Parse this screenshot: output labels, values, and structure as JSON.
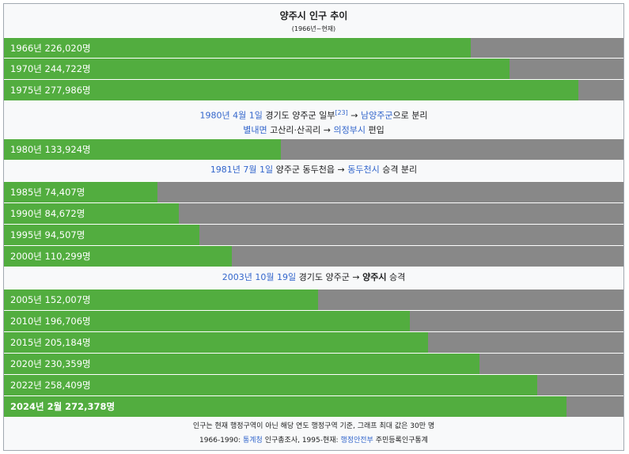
{
  "header": {
    "title": "양주시 인구 추이",
    "subtitle": "(1966년~현재)"
  },
  "colors": {
    "bar": "#52ad3f",
    "track": "#888888",
    "link": "#3366cc"
  },
  "chart_data": {
    "type": "bar",
    "orientation": "horizontal",
    "max": 300000,
    "bars": [
      {
        "label": "1966년 226,020명",
        "value": 226020
      },
      {
        "label": "1970년 244,722명",
        "value": 244722
      },
      {
        "label": "1975년 277,986명",
        "value": 277986
      },
      {
        "label": "1980년 133,924명",
        "value": 133924
      },
      {
        "label": "1985년 74,407명",
        "value": 74407
      },
      {
        "label": "1990년 84,672명",
        "value": 84672
      },
      {
        "label": "1995년 94,507명",
        "value": 94507
      },
      {
        "label": "2000년 110,299명",
        "value": 110299
      },
      {
        "label": "2005년 152,007명",
        "value": 152007
      },
      {
        "label": "2010년 196,706명",
        "value": 196706
      },
      {
        "label": "2015년 205,184명",
        "value": 205184
      },
      {
        "label": "2020년 230,359명",
        "value": 230359
      },
      {
        "label": "2022년 258,409명",
        "value": 258409
      },
      {
        "label": "2024년 2월 272,378명",
        "value": 272378,
        "bold": true
      }
    ]
  },
  "notes": {
    "n1980": {
      "date": "1980년 4월 1일",
      "t1": " 경기도 양주군 일부",
      "ref": "[23]",
      "t2": " → ",
      "link1": "남양주군",
      "t3": "으로 분리",
      "link2": "별내면",
      "t4": " 고산리·산곡리 → ",
      "link3": "의정부시",
      "t5": " 편입"
    },
    "n1981": {
      "date": "1981년 7월 1일",
      "t1": " 양주군 동두천읍 → ",
      "link1": "동두천시",
      "t2": " 승격 분리"
    },
    "n2003": {
      "date": "2003년 10월 19일",
      "t1": " 경기도 양주군 → ",
      "t2": "양주시",
      "t3": " 승격"
    }
  },
  "footer": {
    "line1": "인구는 현재 행정구역이 아닌 해당 연도 행정구역 기준, 그래프 최대 값은 30만 명",
    "line2_a": "1966-1990: ",
    "line2_link1": "통계청",
    "line2_b": " 인구총조사, 1995-현재: ",
    "line2_link2": "행정안전부",
    "line2_c": " 주민등록인구통계"
  }
}
